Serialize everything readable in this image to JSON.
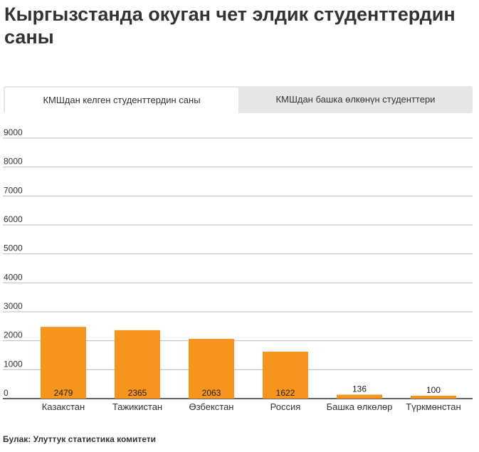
{
  "header": {
    "title": "Кыргызстанда окуган чет элдик студенттердин саны"
  },
  "tabs": [
    {
      "label": "КМШдан келген студенттердин саны",
      "active": true
    },
    {
      "label": "КМШдан башка өлкөнүн студенттери",
      "active": false
    }
  ],
  "chart_data": {
    "type": "bar",
    "categories": [
      "Казакстан",
      "Тажикистан",
      "Өзбекстан",
      "Россия",
      "Башка өлкөлөр",
      "Түркмөнстан"
    ],
    "values": [
      2479,
      2365,
      2063,
      1622,
      136,
      100
    ],
    "ylim": [
      0,
      9000
    ],
    "yticks": [
      0,
      1000,
      2000,
      3000,
      4000,
      5000,
      6000,
      7000,
      8000,
      9000
    ],
    "grid": true,
    "bar_color": "#f7941d"
  },
  "footer": {
    "source": "Булак: Улуттук статистика комитети"
  }
}
